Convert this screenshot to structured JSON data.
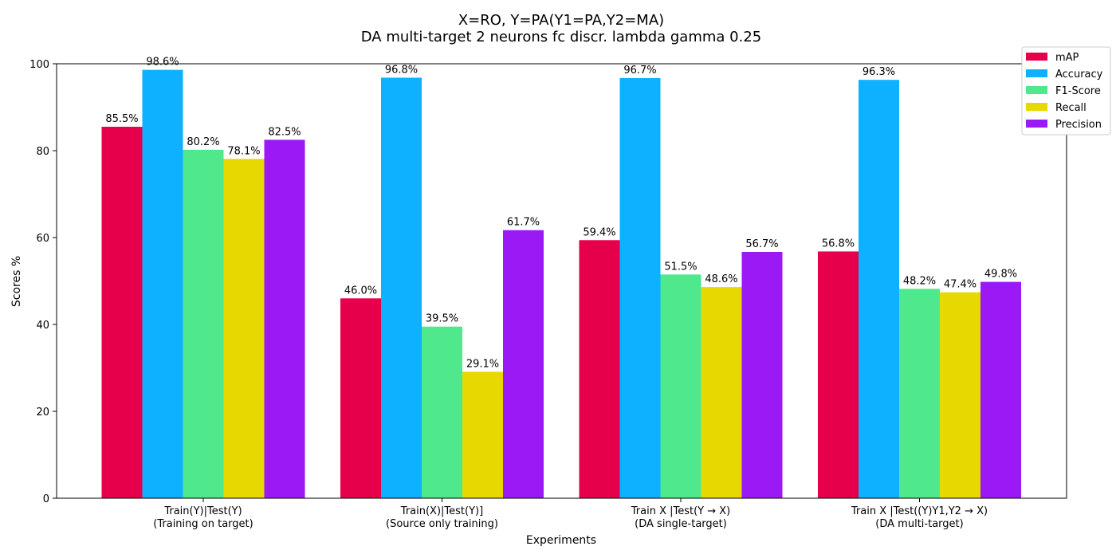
{
  "chart_data": {
    "type": "bar",
    "title": "X=RO, Y=PA(Y1=PA,Y2=MA)",
    "subtitle": "DA multi-target 2 neurons fc discr. lambda gamma 0.25",
    "xlabel": "Experiments",
    "ylabel": "Scores %",
    "ylim": [
      0,
      100
    ],
    "yticks": [
      0,
      20,
      40,
      60,
      80,
      100
    ],
    "grid": false,
    "legend_position": "top-right",
    "categories": [
      [
        "Train(Y)|Test(Y)",
        "(Training on target)"
      ],
      [
        "Train(X)|Test(Y)]",
        "(Source only training)"
      ],
      [
        "Train X |Test(Y → X)",
        "(DA single-target)"
      ],
      [
        "Train X |Test((Y)Y1,Y2 → X)",
        "(DA multi-target)"
      ]
    ],
    "series": [
      {
        "name": "mAP",
        "color": "#e6004c",
        "values": [
          85.5,
          46.0,
          59.4,
          56.8
        ]
      },
      {
        "name": "Accuracy",
        "color": "#0db1ff",
        "values": [
          98.6,
          96.8,
          96.7,
          96.3
        ]
      },
      {
        "name": "F1-Score",
        "color": "#4fe88d",
        "values": [
          80.2,
          39.5,
          51.5,
          48.2
        ]
      },
      {
        "name": "Recall",
        "color": "#e6d800",
        "values": [
          78.1,
          29.1,
          48.6,
          47.4
        ]
      },
      {
        "name": "Precision",
        "color": "#9b19f5",
        "values": [
          82.5,
          61.7,
          56.7,
          49.8
        ]
      }
    ],
    "value_label_suffix": "%"
  }
}
